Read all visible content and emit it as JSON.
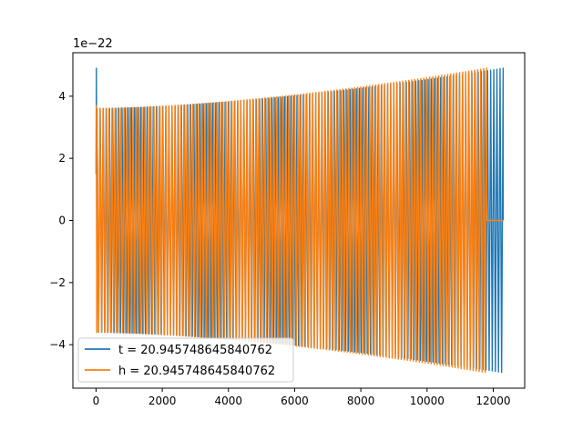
{
  "chart_data": {
    "type": "line",
    "title": "",
    "xlabel": "",
    "ylabel": "",
    "y_offset_text": "1e−22",
    "xlim": [
      -700,
      12950
    ],
    "ylim": [
      -5.4,
      5.4
    ],
    "xticks": [
      0,
      2000,
      4000,
      6000,
      8000,
      10000,
      12000
    ],
    "xtick_labels": [
      "0",
      "2000",
      "4000",
      "6000",
      "8000",
      "10000",
      "12000"
    ],
    "yticks": [
      -4,
      -2,
      0,
      2,
      4
    ],
    "ytick_labels": [
      "−4",
      "−2",
      "0",
      "2",
      "4"
    ],
    "grid": false,
    "legend_position": "lower-left",
    "series": [
      {
        "name": "t = 20.945748645840762",
        "color": "#1f77b4",
        "x_start": 0,
        "x_end": 12300,
        "envelope_start": 3.6,
        "envelope_end": 4.9,
        "initial_spike": 4.9,
        "cycles": 130
      },
      {
        "name": "h = 20.945748645840762",
        "color": "#ff7f0e",
        "x_start": 0,
        "x_end": 11800,
        "envelope_start": 3.6,
        "envelope_end": 4.9,
        "initial_spike": 3.7,
        "tail_flat_end": 12300,
        "cycles": 130
      }
    ]
  }
}
